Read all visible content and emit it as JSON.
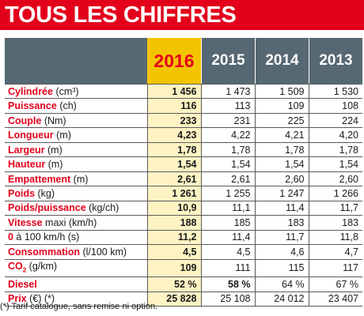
{
  "title": "TOUS LES CHIFFRES",
  "years": [
    "2016",
    "2015",
    "2014",
    "2013"
  ],
  "rows": [
    {
      "label": "Cylindrée",
      "unit": " (cm³)",
      "values": [
        "1 456",
        "1 473",
        "1 509",
        "1 530"
      ]
    },
    {
      "label": "Puissance",
      "unit": " (ch)",
      "values": [
        "116",
        "113",
        "109",
        "108"
      ]
    },
    {
      "label": "Couple",
      "unit": " (Nm)",
      "values": [
        "233",
        "231",
        "225",
        "224"
      ]
    },
    {
      "label": "Longueur",
      "unit": " (m)",
      "values": [
        "4,23",
        "4,22",
        "4,21",
        "4,20"
      ]
    },
    {
      "label": "Largeur",
      "unit": " (m)",
      "values": [
        "1,78",
        "1,78",
        "1,78",
        "1,78"
      ]
    },
    {
      "label": "Hauteur",
      "unit": " (m)",
      "values": [
        "1,54",
        "1,54",
        "1,54",
        "1,54"
      ]
    },
    {
      "label": "Empattement",
      "unit": " (m)",
      "values": [
        "2,61",
        "2,61",
        "2,60",
        "2,60"
      ]
    },
    {
      "label": "Poids",
      "unit": " (kg)",
      "values": [
        "1 261",
        "1 255",
        "1 247",
        "1 266"
      ]
    },
    {
      "label": "Poids/puissance",
      "unit": " (kg/ch)",
      "values": [
        "10,9",
        "11,1",
        "11,4",
        "11,7"
      ]
    },
    {
      "label": "Vitesse",
      "unit": " maxi (km/h)",
      "values": [
        "188",
        "185",
        "183",
        "183"
      ]
    },
    {
      "label": "0",
      "unit": " à 100 km/h (s)",
      "values": [
        "11,2",
        "11,4",
        "11,7",
        "11,8"
      ]
    },
    {
      "label": "Consommation",
      "unit": " (l/100 km)",
      "values": [
        "4,5",
        "4,5",
        "4,6",
        "4,7"
      ]
    },
    {
      "label": "CO",
      "sub": "2",
      "unit": " (g/km)",
      "values": [
        "109",
        "111",
        "115",
        "117"
      ]
    },
    {
      "label": "Diesel",
      "unit": "",
      "values": [
        "52 %",
        "58 %",
        "64 %",
        "67 %"
      ]
    },
    {
      "label": "Prix",
      "unit": " (€) (*)",
      "values": [
        "25 828",
        "25 108",
        "24 012",
        "23 407"
      ]
    }
  ],
  "footnote": "(*) Tarif catalogue, sans remise ni option.",
  "colors": {
    "accent": "#e3001b",
    "header": "#566873",
    "highlight": "#f5c400",
    "highlight_light": "#fff3c4"
  }
}
